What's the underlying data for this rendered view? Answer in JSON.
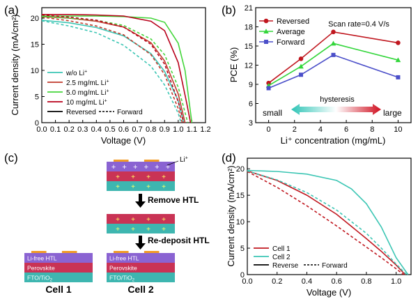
{
  "chart_data": [
    {
      "panel": "(a)",
      "type": "line",
      "xlabel": "Voltage (V)",
      "ylabel": "Current density (mA/cm²)",
      "xlim": [
        0,
        1.2
      ],
      "ylim": [
        0,
        22
      ],
      "xticks": [
        "0.0",
        "0.1",
        "0.2",
        "0.3",
        "0.4",
        "0.5",
        "0.6",
        "0.7",
        "0.8",
        "0.9",
        "1.0",
        "1.1",
        "1.2"
      ],
      "yticks": [
        "0",
        "5",
        "10",
        "15",
        "20"
      ],
      "legend": [
        {
          "text": "w/o Li",
          "sup": "+",
          "color": "#3cc6b4",
          "dash": false
        },
        {
          "text": "2.5 mg/mL Li",
          "sup": "+",
          "color": "#c0392b",
          "dash": false
        },
        {
          "text": "5.0 mg/mL Li",
          "sup": "+",
          "color": "#44d63b",
          "dash": false
        },
        {
          "text": "10 mg/mL Li",
          "sup": "+",
          "color": "#b8001a",
          "dash": false
        },
        {
          "text": "Reversed",
          "sup": "",
          "color": "#000000",
          "dash": false
        },
        {
          "text": "Forward",
          "sup": "",
          "color": "#000000",
          "dash": true
        }
      ],
      "series": [
        {
          "name": "w/o Li+ reversed",
          "color": "#3cc6b4",
          "dash": false,
          "points": [
            [
              0,
              19.6
            ],
            [
              0.2,
              19.1
            ],
            [
              0.4,
              18.2
            ],
            [
              0.6,
              16.6
            ],
            [
              0.8,
              13.2
            ],
            [
              0.9,
              9.8
            ],
            [
              1.0,
              4.2
            ],
            [
              1.04,
              0
            ]
          ]
        },
        {
          "name": "w/o Li+ forward",
          "color": "#3cc6b4",
          "dash": true,
          "points": [
            [
              0,
              19.5
            ],
            [
              0.2,
              18.5
            ],
            [
              0.4,
              17.2
            ],
            [
              0.6,
              14.8
            ],
            [
              0.8,
              10.8
            ],
            [
              0.9,
              7.2
            ],
            [
              1.0,
              1.8
            ],
            [
              1.02,
              0
            ]
          ]
        },
        {
          "name": "2.5 mg/mL Li+ reversed",
          "color": "#c0392b",
          "dash": false,
          "points": [
            [
              0,
              20.3
            ],
            [
              0.2,
              20.0
            ],
            [
              0.4,
              19.4
            ],
            [
              0.6,
              18.3
            ],
            [
              0.8,
              15.3
            ],
            [
              0.9,
              11.8
            ],
            [
              1.0,
              5.5
            ],
            [
              1.05,
              0
            ]
          ]
        },
        {
          "name": "2.5 mg/mL Li+ forward",
          "color": "#c0392b",
          "dash": true,
          "points": [
            [
              0,
              20.2
            ],
            [
              0.2,
              19.5
            ],
            [
              0.4,
              18.5
            ],
            [
              0.6,
              16.8
            ],
            [
              0.8,
              13.0
            ],
            [
              0.9,
              9.2
            ],
            [
              1.0,
              2.7
            ],
            [
              1.03,
              0
            ]
          ]
        },
        {
          "name": "5.0 mg/mL Li+ reversed",
          "color": "#44d63b",
          "dash": false,
          "points": [
            [
              0,
              20.4
            ],
            [
              0.2,
              20.4
            ],
            [
              0.4,
              20.4
            ],
            [
              0.6,
              20.3
            ],
            [
              0.8,
              20.0
            ],
            [
              0.9,
              19.2
            ],
            [
              1.0,
              15.2
            ],
            [
              1.05,
              10.0
            ],
            [
              1.1,
              0
            ]
          ]
        },
        {
          "name": "5.0 mg/mL Li+ forward",
          "color": "#44d63b",
          "dash": true,
          "points": [
            [
              0,
              20.3
            ],
            [
              0.2,
              20.0
            ],
            [
              0.4,
              19.6
            ],
            [
              0.6,
              18.6
            ],
            [
              0.8,
              16.0
            ],
            [
              0.9,
              13.0
            ],
            [
              1.0,
              6.8
            ],
            [
              1.07,
              0
            ]
          ]
        },
        {
          "name": "10 mg/mL Li+ reversed",
          "color": "#b8001a",
          "dash": false,
          "points": [
            [
              0,
              20.7
            ],
            [
              0.2,
              20.7
            ],
            [
              0.4,
              20.6
            ],
            [
              0.6,
              20.4
            ],
            [
              0.8,
              19.4
            ],
            [
              0.9,
              17.6
            ],
            [
              1.0,
              11.5
            ],
            [
              1.06,
              4.0
            ],
            [
              1.09,
              0
            ]
          ]
        },
        {
          "name": "10 mg/mL Li+ forward",
          "color": "#b8001a",
          "dash": true,
          "points": [
            [
              0,
              20.6
            ],
            [
              0.2,
              20.2
            ],
            [
              0.4,
              19.6
            ],
            [
              0.6,
              18.3
            ],
            [
              0.8,
              15.0
            ],
            [
              0.9,
              11.2
            ],
            [
              1.0,
              4.0
            ],
            [
              1.04,
              0
            ]
          ]
        }
      ]
    },
    {
      "panel": "(b)",
      "type": "line",
      "xlabel": "Li⁺ concentration (mg/mL)",
      "ylabel": "PCE (%)",
      "xlim": [
        -1,
        11
      ],
      "ylim": [
        3,
        21
      ],
      "xticks": [
        "0",
        "2",
        "4",
        "6",
        "8",
        "10"
      ],
      "yticks": [
        "3",
        "6",
        "9",
        "12",
        "15",
        "18",
        "21"
      ],
      "annotation": "Scan rate=0.4 V/s",
      "hysteresis": {
        "label": "hysteresis",
        "small": "small",
        "large": "large"
      },
      "x": [
        0,
        2.5,
        5,
        10
      ],
      "series": [
        {
          "name": "Reversed",
          "color": "#c0171f",
          "marker": "circle",
          "values": [
            9.2,
            13.0,
            17.2,
            15.5
          ]
        },
        {
          "name": "Average",
          "color": "#33d63b",
          "marker": "triangle",
          "values": [
            8.8,
            11.8,
            15.4,
            12.8
          ]
        },
        {
          "name": "Forward",
          "color": "#4b4fc9",
          "marker": "square",
          "values": [
            8.4,
            10.5,
            13.6,
            10.1
          ]
        }
      ]
    },
    {
      "panel": "(d)",
      "type": "line",
      "xlabel": "Voltage (V)",
      "ylabel": "Current density (mA/cm²)",
      "xlim": [
        0,
        1.1
      ],
      "ylim": [
        0,
        22
      ],
      "xticks": [
        "0.0",
        "0.2",
        "0.4",
        "0.6",
        "0.8",
        "1.0"
      ],
      "yticks": [
        "0",
        "5",
        "10",
        "15",
        "20"
      ],
      "legend": [
        {
          "text": "Cell 1",
          "color": "#c0171f",
          "dash": false
        },
        {
          "text": "Cell 2",
          "color": "#3cc6b4",
          "dash": false
        },
        {
          "text": "Reverse",
          "color": "#000000",
          "dash": false
        },
        {
          "text": "Forward",
          "color": "#000000",
          "dash": true
        }
      ],
      "series": [
        {
          "name": "Cell 1 reverse",
          "color": "#c0171f",
          "dash": false,
          "points": [
            [
              0,
              19.6
            ],
            [
              0.2,
              17.8
            ],
            [
              0.4,
              15.0
            ],
            [
              0.6,
              11.4
            ],
            [
              0.8,
              6.8
            ],
            [
              0.9,
              4.4
            ],
            [
              1.0,
              1.8
            ],
            [
              1.06,
              0
            ]
          ]
        },
        {
          "name": "Cell 1 forward",
          "color": "#c0171f",
          "dash": true,
          "points": [
            [
              0,
              19.5
            ],
            [
              0.2,
              16.5
            ],
            [
              0.4,
              13.0
            ],
            [
              0.6,
              9.2
            ],
            [
              0.8,
              5.2
            ],
            [
              0.9,
              3.2
            ],
            [
              1.0,
              1.1
            ],
            [
              1.05,
              0
            ]
          ]
        },
        {
          "name": "Cell 2 reverse",
          "color": "#3cc6b4",
          "dash": false,
          "points": [
            [
              0,
              19.7
            ],
            [
              0.2,
              19.5
            ],
            [
              0.4,
              19.0
            ],
            [
              0.6,
              17.8
            ],
            [
              0.7,
              16.2
            ],
            [
              0.8,
              13.4
            ],
            [
              0.9,
              9.0
            ],
            [
              1.0,
              3.2
            ],
            [
              1.08,
              0
            ]
          ]
        },
        {
          "name": "Cell 2 forward",
          "color": "#3cc6b4",
          "dash": true,
          "points": [
            [
              0,
              19.6
            ],
            [
              0.2,
              17.9
            ],
            [
              0.4,
              15.5
            ],
            [
              0.6,
              12.2
            ],
            [
              0.8,
              7.8
            ],
            [
              0.9,
              5.0
            ],
            [
              1.0,
              2.0
            ],
            [
              1.07,
              0
            ]
          ]
        }
      ]
    }
  ],
  "schematic": {
    "panel": "(c)",
    "li_label": "Li",
    "li_sup": "+",
    "step1": "Remove HTL",
    "step2": "Re-deposit HTL",
    "layer_htl": "Li-free HTL",
    "layer_perovskite": "Perovskite",
    "layer_fto": "FTO/TiO",
    "layer_fto_sub": "2",
    "cell1": "Cell 1",
    "cell2": "Cell 2",
    "colors": {
      "electrode": "#f29c25",
      "htl": "#8a63d2",
      "perovskite": "#c93355",
      "fto": "#3eb6b0",
      "plus": "#ffff66"
    }
  }
}
